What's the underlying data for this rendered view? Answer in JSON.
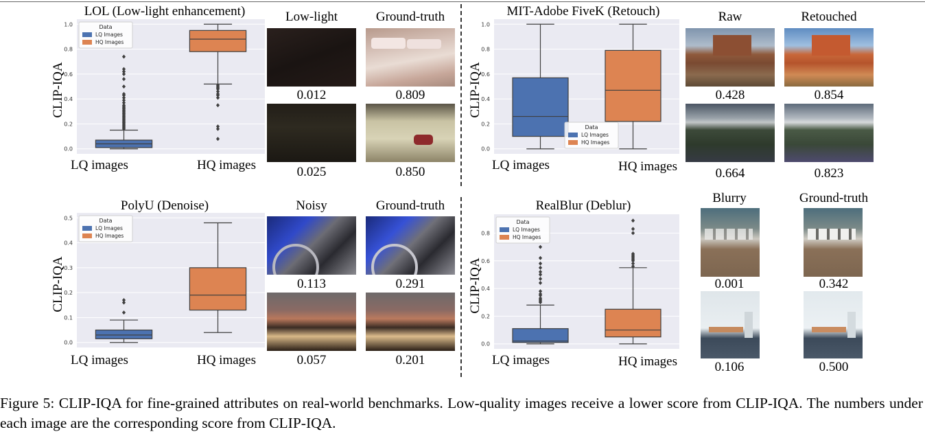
{
  "caption": "Figure 5: CLIP-IQA for fine-grained attributes on real-world benchmarks. Low-quality images receive a lower score from CLIP-IQA. The numbers under each image are the corresponding score from CLIP-IQA.",
  "colors": {
    "lq": "#4c72b0",
    "hq": "#dd8452",
    "panel_bg": "#eaeaf2"
  },
  "chart_data": [
    {
      "type": "box",
      "title": "LOL (Low-light enhancement)",
      "ylabel": "CLIP-IQA",
      "categories": [
        "LQ images",
        "HQ images"
      ],
      "ylim": [
        0,
        1.0
      ],
      "yticks": [
        "0.0",
        "0.2",
        "0.4",
        "0.6",
        "0.8",
        "1.0"
      ],
      "legend": {
        "title": "Data",
        "items": [
          "LQ Images",
          "HQ Images"
        ],
        "position": "upper-left"
      },
      "boxes": [
        {
          "name": "LQ Images",
          "whislo": 0.0,
          "q1": 0.01,
          "med": 0.04,
          "q3": 0.07,
          "whishi": 0.15,
          "fliers": [
            0.16,
            0.17,
            0.18,
            0.19,
            0.2,
            0.21,
            0.22,
            0.23,
            0.24,
            0.25,
            0.26,
            0.27,
            0.28,
            0.29,
            0.3,
            0.31,
            0.32,
            0.33,
            0.34,
            0.35,
            0.37,
            0.39,
            0.41,
            0.43,
            0.44,
            0.5,
            0.56,
            0.6,
            0.62,
            0.64,
            0.74
          ]
        },
        {
          "name": "HQ Images",
          "whislo": 0.52,
          "q1": 0.78,
          "med": 0.88,
          "q3": 0.95,
          "whishi": 1.0,
          "fliers": [
            0.08,
            0.16,
            0.18,
            0.35,
            0.41,
            0.43,
            0.44,
            0.46,
            0.48,
            0.49,
            0.5,
            0.51
          ]
        }
      ]
    },
    {
      "type": "box",
      "title": "MIT-Adobe FiveK (Retouch)",
      "ylabel": "CLIP-IQA",
      "categories": [
        "LQ images",
        "HQ images"
      ],
      "ylim": [
        0,
        1.0
      ],
      "yticks": [
        "0.0",
        "0.2",
        "0.4",
        "0.6",
        "0.8",
        "1.0"
      ],
      "legend": {
        "title": "Data",
        "items": [
          "LQ Images",
          "HQ Images"
        ],
        "position": "lower-center"
      },
      "boxes": [
        {
          "name": "LQ Images",
          "whislo": 0.0,
          "q1": 0.1,
          "med": 0.26,
          "q3": 0.57,
          "whishi": 1.0,
          "fliers": []
        },
        {
          "name": "HQ Images",
          "whislo": 0.0,
          "q1": 0.22,
          "med": 0.47,
          "q3": 0.79,
          "whishi": 1.0,
          "fliers": []
        }
      ]
    },
    {
      "type": "box",
      "title": "PolyU (Denoise)",
      "ylabel": "CLIP-IQA",
      "categories": [
        "LQ images",
        "HQ images"
      ],
      "ylim": [
        0,
        0.5
      ],
      "yticks": [
        "0.0",
        "0.1",
        "0.2",
        "0.3",
        "0.4",
        "0.5"
      ],
      "legend": {
        "title": "Data",
        "items": [
          "LQ Images",
          "HQ Images"
        ],
        "position": "upper-left"
      },
      "boxes": [
        {
          "name": "LQ Images",
          "whislo": 0.0,
          "q1": 0.015,
          "med": 0.03,
          "q3": 0.05,
          "whishi": 0.09,
          "fliers": [
            0.12,
            0.16,
            0.17
          ]
        },
        {
          "name": "HQ Images",
          "whislo": 0.04,
          "q1": 0.13,
          "med": 0.19,
          "q3": 0.3,
          "whishi": 0.48,
          "fliers": []
        }
      ]
    },
    {
      "type": "box",
      "title": "RealBlur (Deblur)",
      "ylabel": "CLIP-IQA",
      "categories": [
        "LQ images",
        "HQ images"
      ],
      "ylim": [
        0,
        0.9
      ],
      "yticks": [
        "0.0",
        "0.2",
        "0.4",
        "0.6",
        "0.8"
      ],
      "legend": {
        "title": "Data",
        "items": [
          "LQ Images",
          "HQ Images"
        ],
        "position": "upper-left"
      },
      "boxes": [
        {
          "name": "LQ Images",
          "whislo": 0.0,
          "q1": 0.01,
          "med": 0.02,
          "q3": 0.11,
          "whishi": 0.28,
          "fliers": [
            0.3,
            0.31,
            0.32,
            0.33,
            0.35,
            0.36,
            0.38,
            0.44,
            0.47,
            0.5,
            0.52,
            0.55,
            0.58,
            0.62,
            0.7
          ]
        },
        {
          "name": "HQ Images",
          "whislo": 0.0,
          "q1": 0.05,
          "med": 0.1,
          "q3": 0.25,
          "whishi": 0.55,
          "fliers": [
            0.56,
            0.58,
            0.6,
            0.61,
            0.62,
            0.63,
            0.64,
            0.65,
            0.8,
            0.83,
            0.89
          ]
        }
      ]
    }
  ],
  "image_groups": [
    {
      "col_labels": [
        "Low-light",
        "Ground-truth"
      ],
      "scores": [
        "0.012",
        "0.809",
        "0.025",
        "0.850"
      ]
    },
    {
      "col_labels": [
        "Raw",
        "Retouched"
      ],
      "scores": [
        "0.428",
        "0.854",
        "0.664",
        "0.823"
      ]
    },
    {
      "col_labels": [
        "Noisy",
        "Ground-truth"
      ],
      "scores": [
        "0.113",
        "0.291",
        "0.057",
        "0.201"
      ]
    },
    {
      "col_labels": [
        "Blurry",
        "Ground-truth"
      ],
      "scores": [
        "0.001",
        "0.342",
        "0.106",
        "0.500"
      ]
    }
  ]
}
